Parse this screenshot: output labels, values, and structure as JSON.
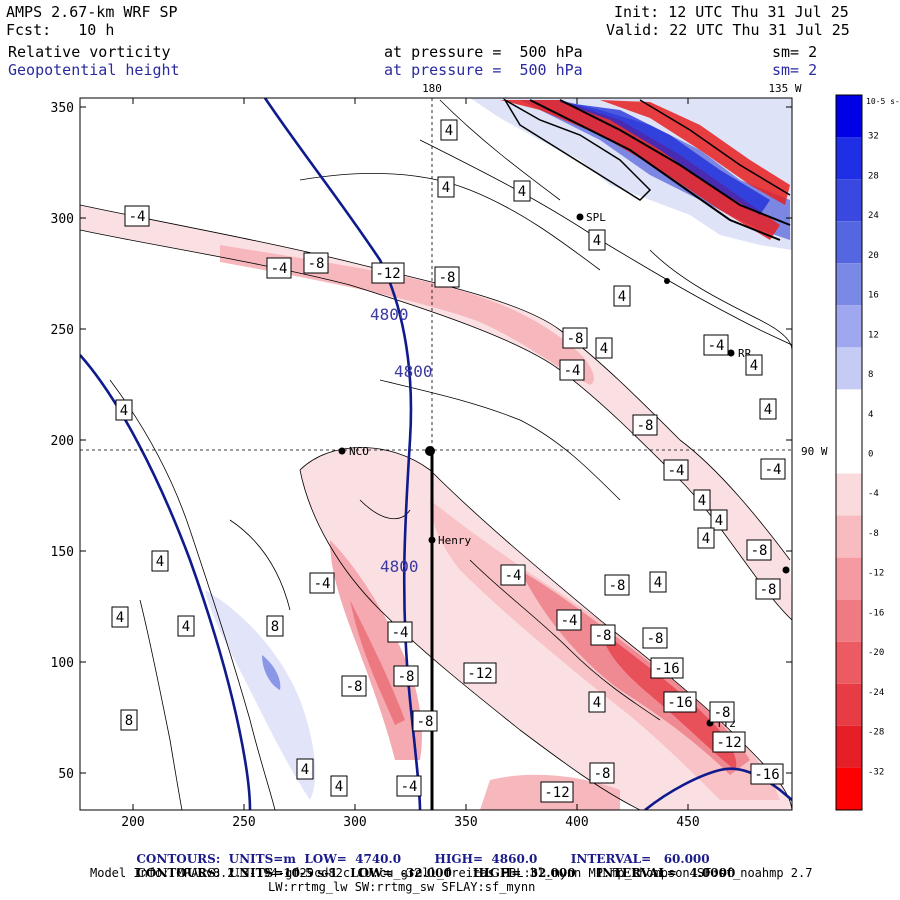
{
  "header": {
    "model": "AMPS 2.67-km WRF SP",
    "forecast": "Fcst:   10 h",
    "init": "Init: 12 UTC Thu 31 Jul 25",
    "valid": "Valid: 22 UTC Thu 31 Jul 25",
    "field1": "Relative vorticity",
    "field2": "Geopotential height",
    "pressure1": "at pressure =  500 hPa",
    "pressure2": "at pressure =  500 hPa",
    "sm1": "sm= 2",
    "sm2": "sm= 2"
  },
  "map_labels": {
    "lon_180": "180",
    "lon_135w": "135 W",
    "lon_90w": "90 W",
    "stations": [
      "NCO",
      "Henry",
      "RR",
      "SPL",
      "TT2"
    ]
  },
  "axes": {
    "x_ticks": [
      "200",
      "250",
      "300",
      "350",
      "400",
      "450"
    ],
    "y_ticks": [
      "350",
      "300",
      "250",
      "200",
      "150",
      "100",
      "50"
    ]
  },
  "colorbar": {
    "unit": "10-5 s-1",
    "labels": [
      "32",
      "28",
      "24",
      "20",
      "16",
      "12",
      "8",
      "4",
      "0",
      "-4",
      "-8",
      "-12",
      "-16",
      "-20",
      "-24",
      "-28",
      "-32"
    ],
    "colors": [
      "#0000e6",
      "#1f2fe6",
      "#3848e0",
      "#5567e0",
      "#7a88e6",
      "#9fa8ee",
      "#c6cbf5",
      "#ffffff",
      "#ffffff",
      "#fadadd",
      "#f8bcc0",
      "#f49aa0",
      "#f07a82",
      "#ec5a62",
      "#e83c44",
      "#e61e26",
      "#ff0000"
    ]
  },
  "contour_labels": {
    "height": [
      "4800",
      "4800",
      "4800"
    ],
    "vort_boxes": [
      "4",
      "4",
      "4",
      "-4",
      "-4",
      "-8",
      "-12",
      "-8",
      "4",
      "4",
      "-8",
      "4",
      "-4",
      "-4",
      "4",
      "4",
      "-8",
      "4",
      "-4",
      "-4",
      "4",
      "4",
      "-8",
      "4",
      "-4",
      "-8",
      "4",
      "4",
      "4",
      "8",
      "-4",
      "-4",
      "4",
      "-8",
      "-8",
      "-4",
      "-8",
      "-8",
      "-16",
      "-16",
      "-12",
      "-8",
      "-16",
      "-12",
      "4",
      "8",
      "4",
      "-8",
      "-12",
      "-4",
      "4",
      "-8",
      "-8"
    ]
  },
  "footer": {
    "line1_a": "CONTOURS:  UNITS=m  LOW=  4740.0",
    "line1_b": "HIGH=  4860.0",
    "line1_c": "INTERVAL=   60.000",
    "line2_a": "CONTOURS:  UNITS=10-5 s-1   LOW=  -32.000",
    "line2_b": "HIGH=  32.000",
    "line2_c": "INTERVAL=   4.0000",
    "line3": "Model Info: MPASv8.2.3-194-gf29cd82c CU:cu_grell_freitas PBL:bl_mynn MP:mp_thompson SF:sf_noahmp 2.7",
    "line4": "LW:rrtmg_lw SW:rrtmg_sw SFLAY:sf_mynn"
  }
}
